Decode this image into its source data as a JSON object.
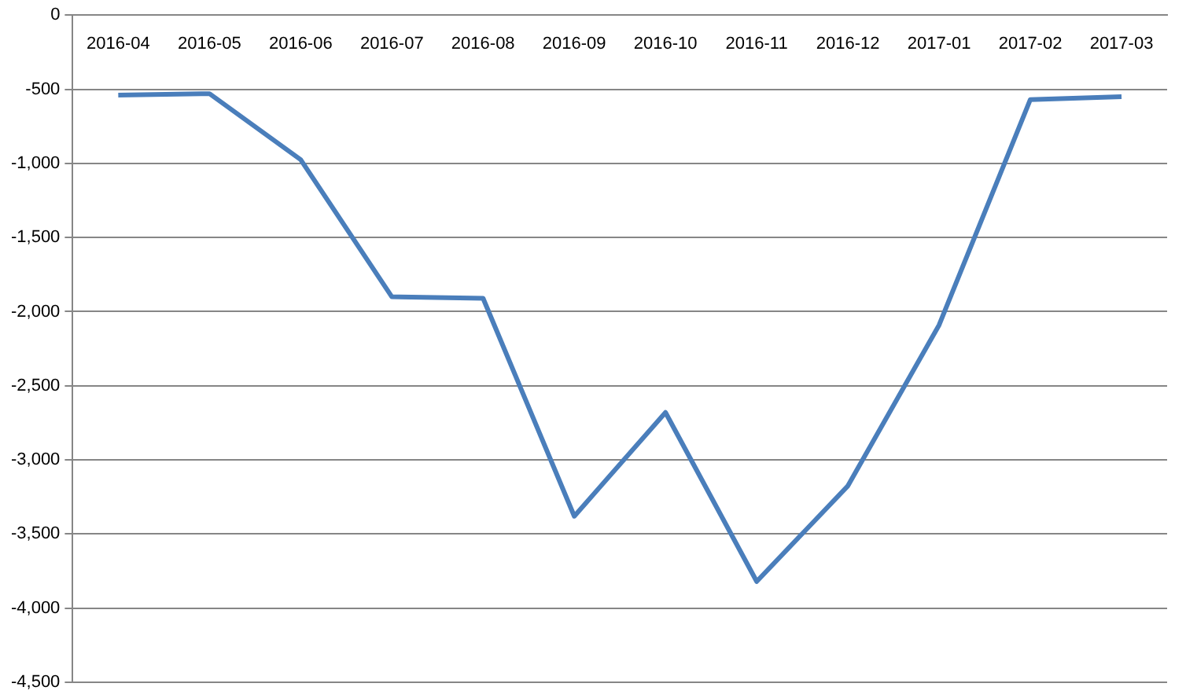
{
  "chart_data": {
    "type": "line",
    "categories": [
      "2016-04",
      "2016-05",
      "2016-06",
      "2016-07",
      "2016-08",
      "2016-09",
      "2016-10",
      "2016-11",
      "2016-12",
      "2017-01",
      "2017-02",
      "2017-03"
    ],
    "series": [
      {
        "color": "#4a7ebb",
        "values": [
          -540,
          -530,
          -975,
          -1900,
          -1910,
          -3380,
          -2680,
          -3820,
          -3175,
          -2090,
          -570,
          -550
        ]
      }
    ],
    "ylim": [
      -4500,
      0
    ],
    "yticks": [
      {
        "value": -4500,
        "label": "-4,500"
      },
      {
        "value": -4000,
        "label": "-4,000"
      },
      {
        "value": -3500,
        "label": "-3,500"
      },
      {
        "value": -3000,
        "label": "-3,000"
      },
      {
        "value": -2500,
        "label": "-2,500"
      },
      {
        "value": -2000,
        "label": "-2,000"
      },
      {
        "value": -1500,
        "label": "-1,500"
      },
      {
        "value": -1000,
        "label": "-1,000"
      },
      {
        "value": -500,
        "label": "-500"
      },
      {
        "value": 0,
        "label": "0"
      }
    ],
    "grid": "y",
    "marker": "none",
    "line_style": "solid",
    "legend": false
  }
}
